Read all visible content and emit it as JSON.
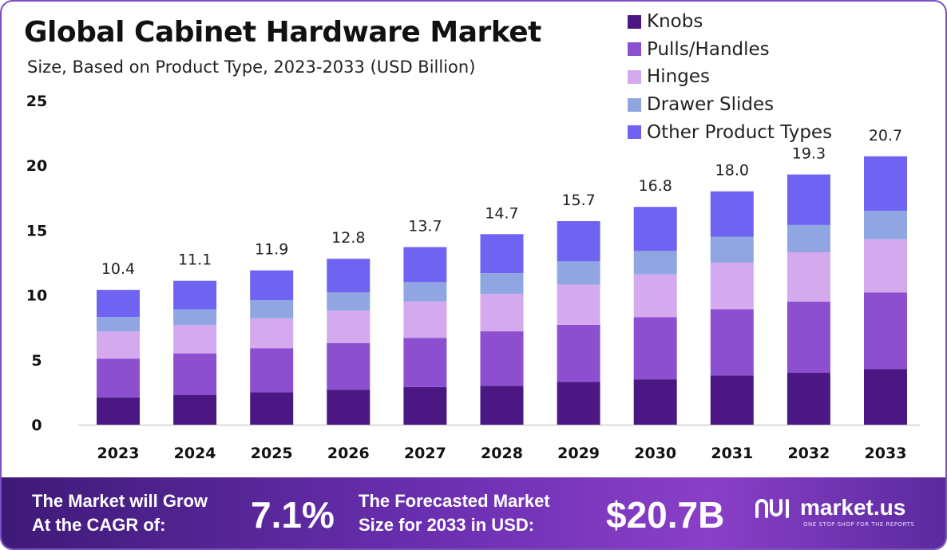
{
  "header": {
    "title": "Global Cabinet Hardware Market",
    "subtitle": "Size, Based on Product Type, 2023-2033 (USD Billion)"
  },
  "chart_data": {
    "type": "bar",
    "stacked": true,
    "title": "Global Cabinet Hardware Market",
    "subtitle": "Size, Based on Product Type, 2023-2033 (USD Billion)",
    "xlabel": "",
    "ylabel": "",
    "ylim": [
      0,
      25
    ],
    "yticks": [
      0,
      5,
      10,
      15,
      20,
      25
    ],
    "categories": [
      "2023",
      "2024",
      "2025",
      "2026",
      "2027",
      "2028",
      "2029",
      "2030",
      "2031",
      "2032",
      "2033"
    ],
    "totals": [
      "10.4",
      "11.1",
      "11.9",
      "12.8",
      "13.7",
      "14.7",
      "15.7",
      "16.8",
      "18.0",
      "19.3",
      "20.7"
    ],
    "legend_position": "top-right",
    "series": [
      {
        "name": "Knobs",
        "color": "#4a1783",
        "values": [
          2.1,
          2.3,
          2.5,
          2.7,
          2.9,
          3.0,
          3.3,
          3.5,
          3.8,
          4.0,
          4.3
        ]
      },
      {
        "name": "Pulls/Handles",
        "color": "#8b4fcf",
        "values": [
          3.0,
          3.2,
          3.4,
          3.6,
          3.8,
          4.2,
          4.4,
          4.8,
          5.1,
          5.5,
          5.9
        ]
      },
      {
        "name": "Hinges",
        "color": "#d4a9ee",
        "values": [
          2.1,
          2.2,
          2.3,
          2.5,
          2.8,
          2.9,
          3.1,
          3.3,
          3.6,
          3.8,
          4.1
        ]
      },
      {
        "name": "Drawer Slides",
        "color": "#8fa6e3",
        "values": [
          1.1,
          1.2,
          1.4,
          1.4,
          1.5,
          1.6,
          1.8,
          1.8,
          2.0,
          2.1,
          2.2
        ]
      },
      {
        "name": "Other Product Types",
        "color": "#6f64f2",
        "values": [
          2.1,
          2.2,
          2.3,
          2.6,
          2.7,
          3.0,
          3.1,
          3.4,
          3.5,
          3.9,
          4.2
        ]
      }
    ]
  },
  "footer": {
    "cagr_label": "The Market will Grow\nAt the CAGR of:",
    "cagr_value": "7.1%",
    "forecast_label": "The Forecasted Market\nSize for 2033 in USD:",
    "forecast_value": "$20.7B",
    "brand_name": "market.us",
    "brand_tagline": "ONE STOP SHOP FOR THE REPORTS"
  }
}
